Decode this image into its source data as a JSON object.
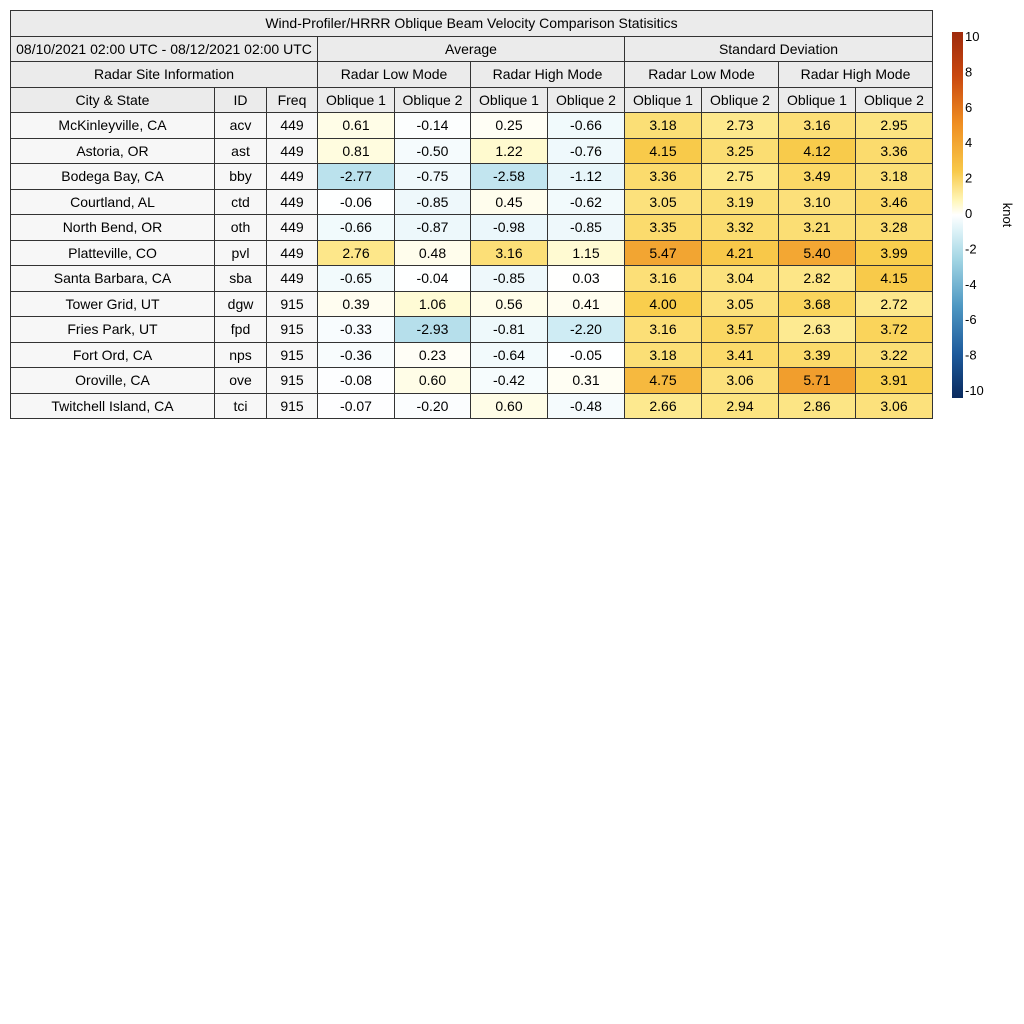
{
  "title": "Wind-Profiler/HRRR Oblique Beam Velocity Comparison Statisitics",
  "period": "08/10/2021 02:00 UTC - 08/12/2021 02:00 UTC",
  "group_average": "Average",
  "group_std": "Standard Deviation",
  "site_info": "Radar Site Information",
  "mode_low": "Radar Low Mode",
  "mode_high": "Radar High Mode",
  "col_city": "City & State",
  "col_id": "ID",
  "col_freq": "Freq",
  "col_ob1": "Oblique 1",
  "col_ob2": "Oblique 2",
  "colorbar": {
    "label": "knot",
    "min": -10,
    "max": 10,
    "ticks": [
      "10",
      "8",
      "6",
      "4",
      "2",
      "0",
      "-2",
      "-4",
      "-6",
      "-8",
      "-10"
    ]
  },
  "chart_data": {
    "type": "table",
    "title": "Wind-Profiler/HRRR Oblique Beam Velocity Comparison Statisitics",
    "columns": [
      "City & State",
      "ID",
      "Freq",
      "Average Radar Low Mode Oblique 1",
      "Average Radar Low Mode Oblique 2",
      "Average Radar High Mode Oblique 1",
      "Average Radar High Mode Oblique 2",
      "Standard Deviation Radar Low Mode Oblique 1",
      "Standard Deviation Radar Low Mode Oblique 2",
      "Standard Deviation Radar High Mode Oblique 1",
      "Standard Deviation Radar High Mode Oblique 2"
    ],
    "unit": "knot",
    "rows": [
      {
        "city": "McKinleyville, CA",
        "id": "acv",
        "freq": "449",
        "values": [
          "0.61",
          "-0.14",
          "0.25",
          "-0.66",
          "3.18",
          "2.73",
          "3.16",
          "2.95"
        ]
      },
      {
        "city": "Astoria, OR",
        "id": "ast",
        "freq": "449",
        "values": [
          "0.81",
          "-0.50",
          "1.22",
          "-0.76",
          "4.15",
          "3.25",
          "4.12",
          "3.36"
        ]
      },
      {
        "city": "Bodega Bay, CA",
        "id": "bby",
        "freq": "449",
        "values": [
          "-2.77",
          "-0.75",
          "-2.58",
          "-1.12",
          "3.36",
          "2.75",
          "3.49",
          "3.18"
        ]
      },
      {
        "city": "Courtland, AL",
        "id": "ctd",
        "freq": "449",
        "values": [
          "-0.06",
          "-0.85",
          "0.45",
          "-0.62",
          "3.05",
          "3.19",
          "3.10",
          "3.46"
        ]
      },
      {
        "city": "North Bend, OR",
        "id": "oth",
        "freq": "449",
        "values": [
          "-0.66",
          "-0.87",
          "-0.98",
          "-0.85",
          "3.35",
          "3.32",
          "3.21",
          "3.28"
        ]
      },
      {
        "city": "Platteville, CO",
        "id": "pvl",
        "freq": "449",
        "values": [
          "2.76",
          "0.48",
          "3.16",
          "1.15",
          "5.47",
          "4.21",
          "5.40",
          "3.99"
        ]
      },
      {
        "city": "Santa Barbara, CA",
        "id": "sba",
        "freq": "449",
        "values": [
          "-0.65",
          "-0.04",
          "-0.85",
          "0.03",
          "3.16",
          "3.04",
          "2.82",
          "4.15"
        ]
      },
      {
        "city": "Tower Grid, UT",
        "id": "dgw",
        "freq": "915",
        "values": [
          "0.39",
          "1.06",
          "0.56",
          "0.41",
          "4.00",
          "3.05",
          "3.68",
          "2.72"
        ]
      },
      {
        "city": "Fries Park, UT",
        "id": "fpd",
        "freq": "915",
        "values": [
          "-0.33",
          "-2.93",
          "-0.81",
          "-2.20",
          "3.16",
          "3.57",
          "2.63",
          "3.72"
        ]
      },
      {
        "city": "Fort Ord, CA",
        "id": "nps",
        "freq": "915",
        "values": [
          "-0.36",
          "0.23",
          "-0.64",
          "-0.05",
          "3.18",
          "3.41",
          "3.39",
          "3.22"
        ]
      },
      {
        "city": "Oroville, CA",
        "id": "ove",
        "freq": "915",
        "values": [
          "-0.08",
          "0.60",
          "-0.42",
          "0.31",
          "4.75",
          "3.06",
          "5.71",
          "3.91"
        ]
      },
      {
        "city": "Twitchell Island, CA",
        "id": "tci",
        "freq": "915",
        "values": [
          "-0.07",
          "-0.20",
          "0.60",
          "-0.48",
          "2.66",
          "2.94",
          "2.86",
          "3.06"
        ]
      }
    ]
  }
}
